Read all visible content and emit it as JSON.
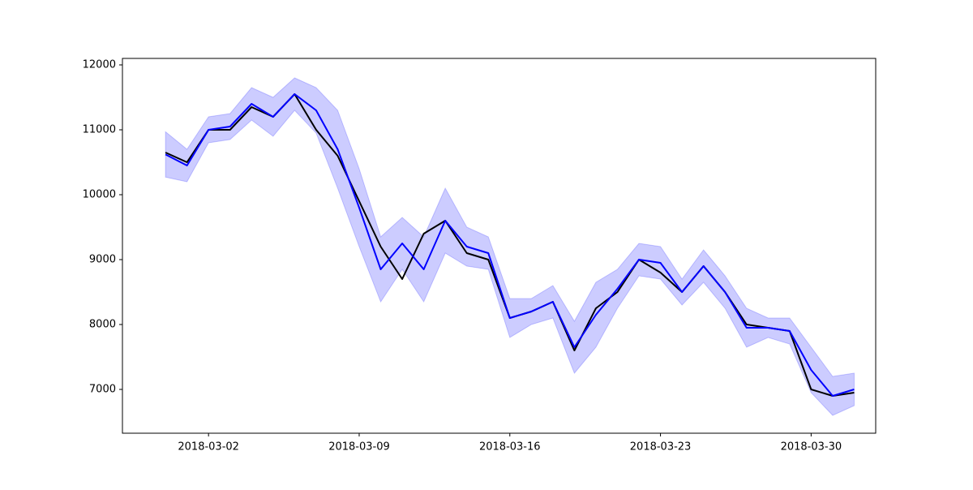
{
  "chart_data": {
    "type": "line",
    "x": [
      "2018-02-28",
      "2018-03-01",
      "2018-03-02",
      "2018-03-03",
      "2018-03-04",
      "2018-03-05",
      "2018-03-06",
      "2018-03-07",
      "2018-03-08",
      "2018-03-09",
      "2018-03-10",
      "2018-03-11",
      "2018-03-12",
      "2018-03-13",
      "2018-03-14",
      "2018-03-15",
      "2018-03-16",
      "2018-03-17",
      "2018-03-18",
      "2018-03-19",
      "2018-03-20",
      "2018-03-21",
      "2018-03-22",
      "2018-03-23",
      "2018-03-24",
      "2018-03-25",
      "2018-03-26",
      "2018-03-27",
      "2018-03-28",
      "2018-03-29",
      "2018-03-30",
      "2018-03-31",
      "2018-04-01"
    ],
    "band": {
      "color": "#0000ff",
      "opacity": 0.2,
      "upper": [
        10970,
        10700,
        11200,
        11250,
        11650,
        11500,
        11800,
        11650,
        11300,
        10400,
        9350,
        9650,
        9350,
        10100,
        9500,
        9350,
        8400,
        8400,
        8600,
        8050,
        8650,
        8850,
        9250,
        9200,
        8700,
        9150,
        8750,
        8250,
        8100,
        8100,
        7650,
        7200,
        7250
      ],
      "lower": [
        10270,
        10200,
        10800,
        10850,
        11150,
        10900,
        11300,
        10950,
        10100,
        9200,
        8350,
        8850,
        8350,
        9100,
        8900,
        8850,
        7800,
        8000,
        8100,
        7250,
        7650,
        8250,
        8750,
        8700,
        8300,
        8650,
        8250,
        7650,
        7800,
        7700,
        6950,
        6600,
        6750
      ]
    },
    "series": [
      {
        "color": "#000000",
        "values": [
          10650,
          10500,
          11000,
          11000,
          11350,
          11200,
          11550,
          11000,
          10600,
          9900,
          9200,
          8700,
          9400,
          9600,
          9100,
          9000,
          8100,
          8200,
          8350,
          7600,
          8250,
          8500,
          9000,
          8800,
          8500,
          8900,
          8500,
          8000,
          7950,
          7900,
          7000,
          6900,
          6950
        ]
      },
      {
        "color": "#0000ff",
        "values": [
          10620,
          10450,
          11000,
          11050,
          11400,
          11200,
          11550,
          11300,
          10700,
          9800,
          8850,
          9250,
          8850,
          9600,
          9200,
          9100,
          8100,
          8200,
          8350,
          7650,
          8150,
          8550,
          9000,
          8950,
          8500,
          8900,
          8500,
          7950,
          7950,
          7900,
          7300,
          6900,
          7000
        ]
      }
    ],
    "xlim": [
      "2018-02-26",
      "2018-04-02"
    ],
    "xticks": [
      "2018-03-02",
      "2018-03-09",
      "2018-03-16",
      "2018-03-23",
      "2018-03-30"
    ],
    "ylim": [
      6325,
      12100
    ],
    "yticks": [
      7000,
      8000,
      9000,
      10000,
      11000,
      12000
    ]
  }
}
